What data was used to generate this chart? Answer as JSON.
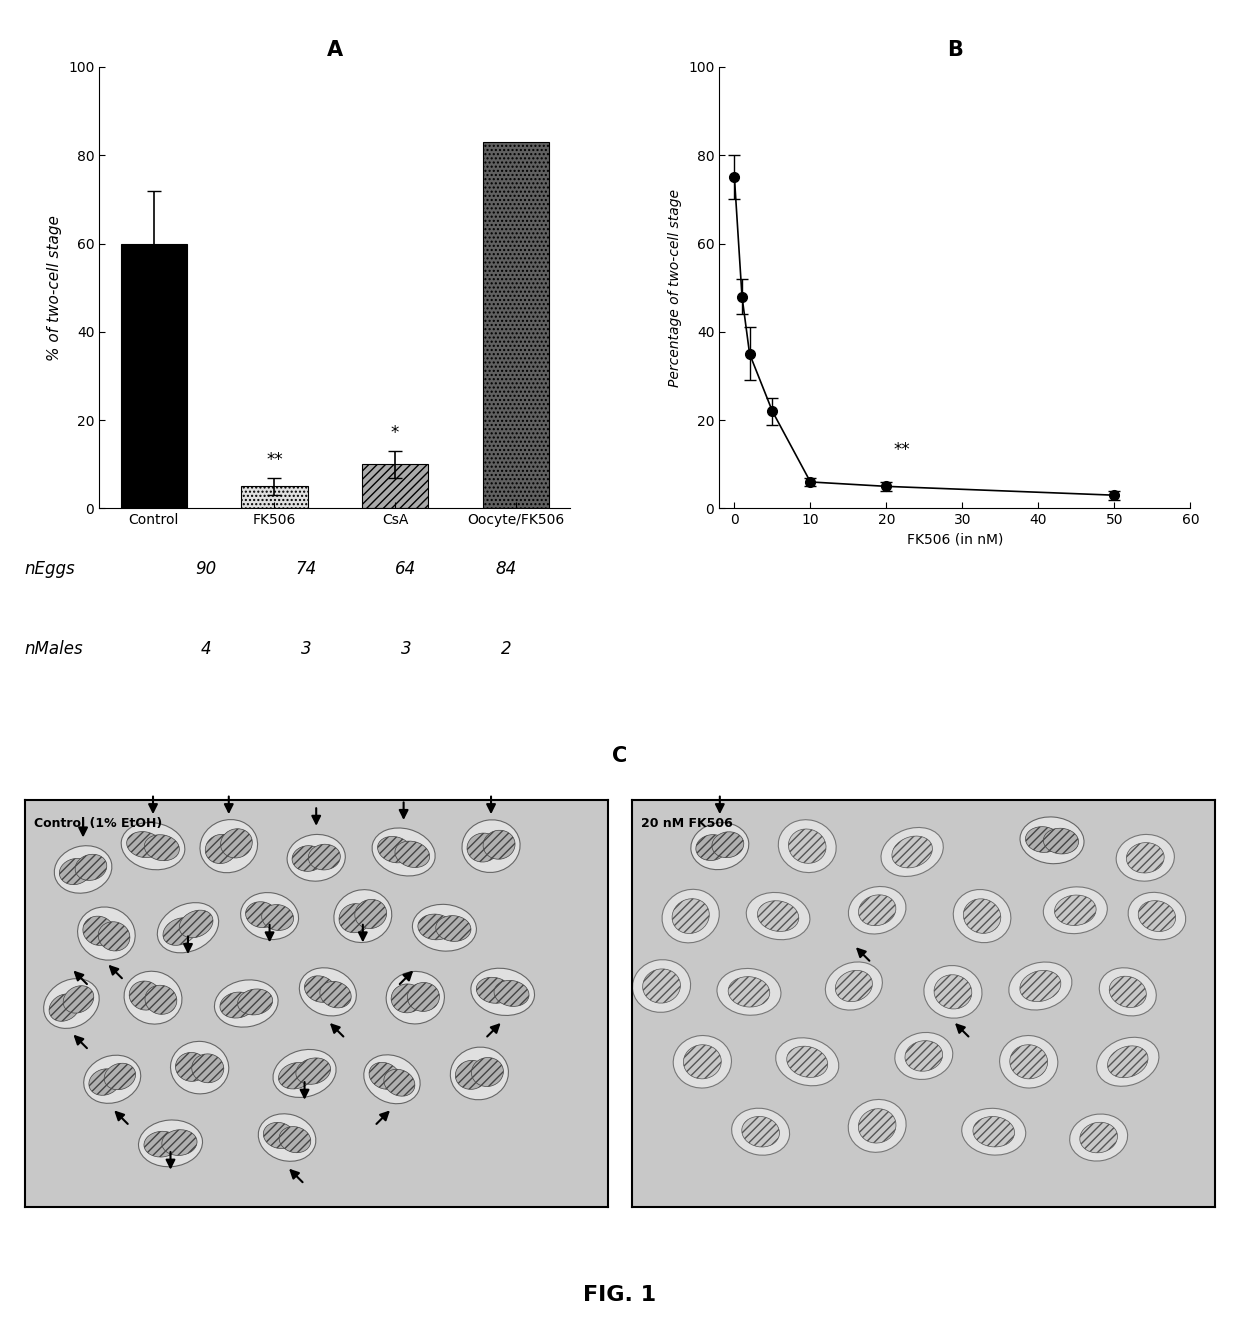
{
  "panel_A": {
    "categories": [
      "Control",
      "FK506",
      "CsA",
      "Oocyte/FK506"
    ],
    "values": [
      60,
      5,
      10,
      83
    ],
    "errors": [
      12,
      2,
      3,
      0
    ],
    "ylabel": "% of two-cell stage",
    "ylim": [
      0,
      100
    ],
    "yticks": [
      0,
      20,
      40,
      60,
      80,
      100
    ],
    "bar_colors": [
      "#000000",
      "#e0e0e0",
      "#aaaaaa",
      "#606060"
    ],
    "bar_hatches": [
      "",
      "....",
      "////",
      "...."
    ],
    "significance": [
      "",
      "**",
      "*",
      ""
    ],
    "nEggs": [
      90,
      74,
      64,
      84
    ],
    "nMales": [
      4,
      3,
      3,
      2
    ]
  },
  "panel_B": {
    "x": [
      0,
      1,
      2,
      5,
      10,
      20,
      50
    ],
    "y": [
      75,
      48,
      35,
      22,
      6,
      5,
      3
    ],
    "yerr": [
      5,
      4,
      6,
      3,
      1,
      1,
      1
    ],
    "xlabel": "FK506 (in nM)",
    "ylabel": "Percentage of two-cell stage",
    "ylim": [
      0,
      100
    ],
    "yticks": [
      0,
      20,
      40,
      60,
      80,
      100
    ],
    "xlim": [
      -2,
      60
    ],
    "xticks": [
      0,
      10,
      20,
      30,
      40,
      50,
      60
    ],
    "significance_x": 21,
    "significance_y": 12,
    "significance_text": "**"
  },
  "panel_C1_title": "Control (1% EtOH)",
  "panel_C2_title": "20 nM FK506",
  "fig_label": "FIG. 1",
  "bg_color": "#d8d8d8",
  "background_color": "#ffffff"
}
